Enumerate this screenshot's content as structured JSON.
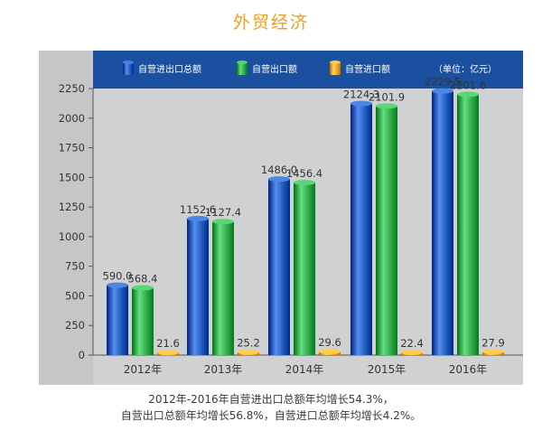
{
  "title": "外贸经济",
  "unit_label": "（单位：亿元）",
  "caption_lines": [
    "2012年-2016年自营进出口总额年均增长54.3%，",
    "自营出口总额年均增长56.8%，自营进口总额年均增长4.2%。"
  ],
  "colors": {
    "title": "#f29b1d",
    "header_band": "#1b4fa0",
    "panel": "#cfd1d3",
    "series": [
      "#1e58b8",
      "#2fa84a",
      "#f0a020"
    ]
  },
  "chart_data": {
    "type": "bar",
    "categories": [
      "2012年",
      "2013年",
      "2014年",
      "2015年",
      "2016年"
    ],
    "series": [
      {
        "name": "自营进出口总额",
        "values": [
          590.0,
          1152.6,
          1486.0,
          2124.3,
          2229.5
        ],
        "labels": [
          "590.0",
          "1152.6",
          "1486.0",
          "2124.3",
          "2229.5"
        ]
      },
      {
        "name": "自营出口额",
        "values": [
          568.4,
          1127.4,
          1456.4,
          2101.9,
          2201.6
        ],
        "labels": [
          "568.4",
          "1127.4",
          "1456.4",
          "2101.9",
          "2201.6"
        ]
      },
      {
        "name": "自营进口额",
        "values": [
          21.6,
          25.2,
          29.6,
          22.4,
          27.9
        ],
        "labels": [
          "21.6",
          "25.2",
          "29.6",
          "22.4",
          "27.9"
        ]
      }
    ],
    "ylim": [
      0,
      2250
    ],
    "yticks": [
      0,
      250,
      500,
      750,
      1000,
      1250,
      1500,
      1750,
      2000,
      2250
    ],
    "legend_position": "top",
    "grid": false
  }
}
